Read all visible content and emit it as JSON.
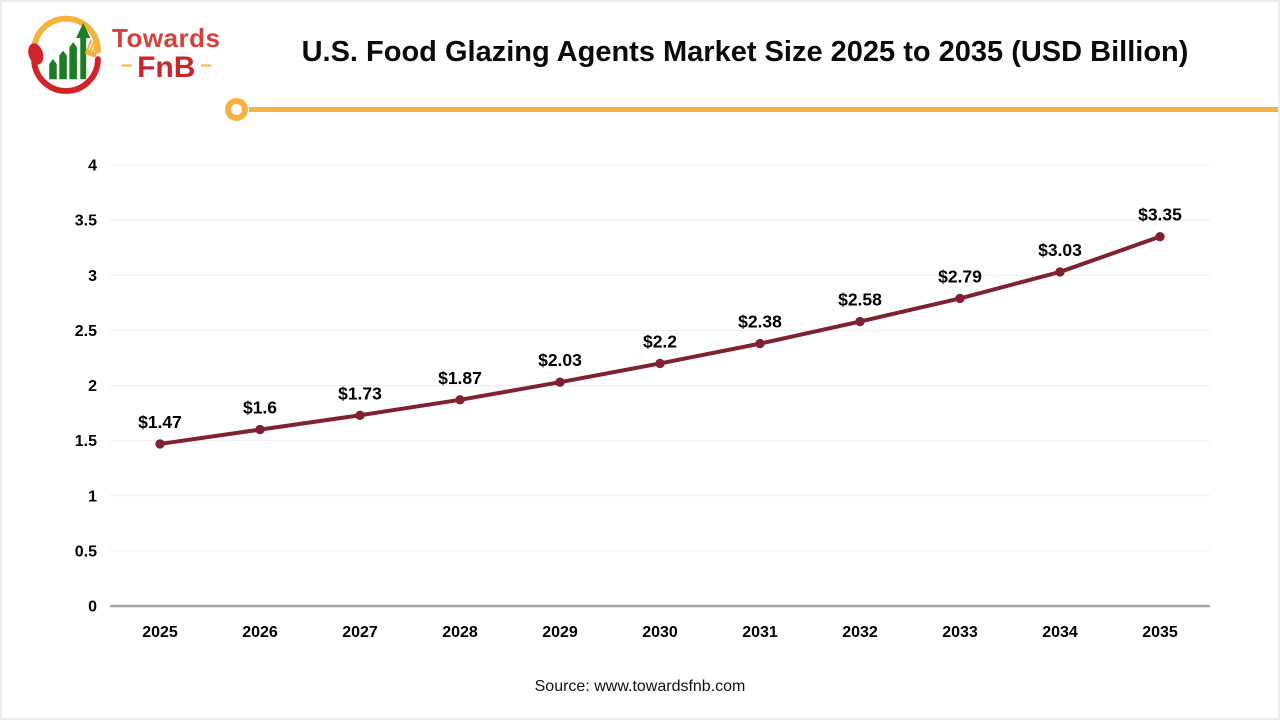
{
  "page": {
    "title": "U.S. Food Glazing Agents Market Size 2025 to 2035 (USD Billion)",
    "source": "Source: www.towardsfnb.com"
  },
  "logo": {
    "brand_top": "Towards",
    "brand_bottom": "FnB",
    "dash_left": "–",
    "dash_right": "–",
    "colors": {
      "red": "#d4403a",
      "dark_red": "#c9252b",
      "yellow": "#f4b13d",
      "green": "#1e7c25"
    }
  },
  "divider": {
    "color": "#f4b13d"
  },
  "chart_data": {
    "type": "line",
    "title": "U.S. Food Glazing Agents Market Size 2025 to 2035 (USD Billion)",
    "categories": [
      "2025",
      "2026",
      "2027",
      "2028",
      "2029",
      "2030",
      "2031",
      "2032",
      "2033",
      "2034",
      "2035"
    ],
    "series": [
      {
        "name": "U.S. Food Glazing Agents Market Size (USD Billion)",
        "values": [
          1.47,
          1.6,
          1.73,
          1.87,
          2.03,
          2.2,
          2.38,
          2.58,
          2.79,
          3.03,
          3.35
        ]
      }
    ],
    "point_labels": [
      "$1.47",
      "$1.6",
      "$1.73",
      "$1.87",
      "$2.03",
      "$2.2",
      "$2.38",
      "$2.58",
      "$2.79",
      "$3.03",
      "$3.35"
    ],
    "xlabel": "",
    "ylabel": "",
    "ylim": [
      0,
      4
    ],
    "ytick_step": 0.5,
    "ytick_labels": [
      "0",
      "0.5",
      "1",
      "1.5",
      "2",
      "2.5",
      "3",
      "3.5",
      "4"
    ],
    "grid": true,
    "legend_position": "none",
    "line_color": "#7e2130",
    "marker_color": "#7e2130",
    "gridline_color": "#ededed",
    "axis_color": "#a6a6a6",
    "label_color": "#000000"
  }
}
